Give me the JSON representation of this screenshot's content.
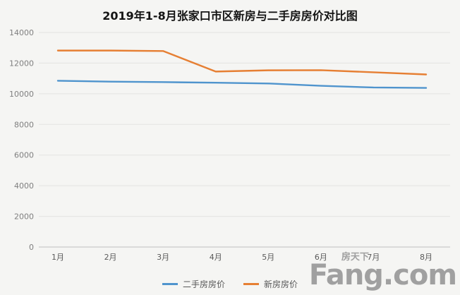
{
  "chart_data": {
    "type": "line",
    "title": "2019年1-8月张家口市区新房与二手房房价对比图",
    "categories": [
      "1月",
      "2月",
      "3月",
      "4月",
      "5月",
      "6月",
      "7月",
      "8月"
    ],
    "series": [
      {
        "name": "二手房房价",
        "color": "#4f94cd",
        "values": [
          10850,
          10790,
          10760,
          10720,
          10670,
          10520,
          10410,
          10380
        ]
      },
      {
        "name": "新房房价",
        "color": "#e67f33",
        "values": [
          12820,
          12820,
          12790,
          11450,
          11530,
          11540,
          11400,
          11260
        ]
      }
    ],
    "ylim": [
      0,
      14000
    ],
    "y_ticks": [
      0,
      2000,
      4000,
      6000,
      8000,
      10000,
      12000,
      14000
    ],
    "grid": true,
    "legend_position": "bottom",
    "xlabel": "",
    "ylabel": ""
  },
  "watermark": {
    "cn": "房天下",
    "en": "Fang.com"
  },
  "colors": {
    "background": "#f5f5f3",
    "gridline": "#e3e3e1",
    "axis": "#bfbfbf",
    "watermark": "#a0a0a0"
  }
}
